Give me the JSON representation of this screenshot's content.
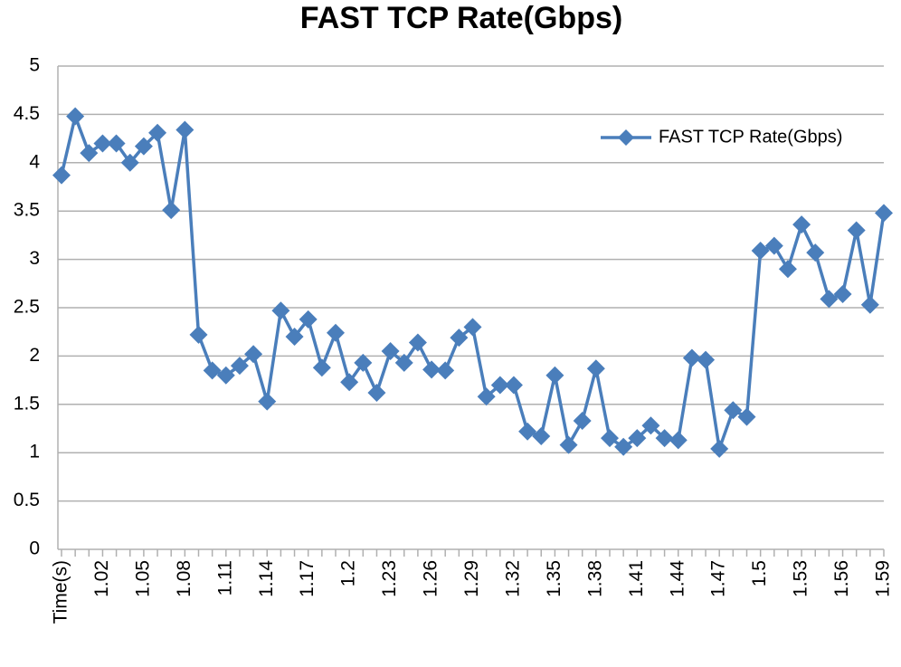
{
  "chart_data": {
    "type": "line",
    "title": "FAST TCP Rate(Gbps)",
    "categories": [
      "Time(s)",
      null,
      null,
      "1.02",
      null,
      null,
      "1.05",
      null,
      null,
      "1.08",
      null,
      null,
      "1.11",
      null,
      null,
      "1.14",
      null,
      null,
      "1.17",
      null,
      null,
      "1.2",
      null,
      null,
      "1.23",
      null,
      null,
      "1.26",
      null,
      null,
      "1.29",
      null,
      null,
      "1.32",
      null,
      null,
      "1.35",
      null,
      null,
      "1.38",
      null,
      null,
      "1.41",
      null,
      null,
      "1.44",
      null,
      null,
      "1.47",
      null,
      null,
      "1.5",
      null,
      null,
      "1.53",
      null,
      null,
      "1.56",
      null,
      null,
      "1.59"
    ],
    "series": [
      {
        "name": "FAST TCP Rate(Gbps)",
        "color": "#4a7ebb",
        "values": [
          3.87,
          4.48,
          4.1,
          4.2,
          4.2,
          4.0,
          4.17,
          4.31,
          3.51,
          4.34,
          2.22,
          1.85,
          1.8,
          1.9,
          2.02,
          1.53,
          2.47,
          2.2,
          2.38,
          1.88,
          2.24,
          1.73,
          1.93,
          1.62,
          2.05,
          1.93,
          2.14,
          1.86,
          1.85,
          2.19,
          2.3,
          1.58,
          1.7,
          1.7,
          1.22,
          1.17,
          1.8,
          1.08,
          1.33,
          1.87,
          1.15,
          1.06,
          1.15,
          1.28,
          1.15,
          1.13,
          1.98,
          1.96,
          1.04,
          1.44,
          1.37,
          3.09,
          3.14,
          2.9,
          3.36,
          3.07,
          2.59,
          2.64,
          3.3,
          2.53,
          3.48
        ]
      }
    ],
    "ylim": [
      0,
      5
    ],
    "yticks": [
      0,
      0.5,
      1,
      1.5,
      2,
      2.5,
      3,
      3.5,
      4,
      4.5,
      5
    ],
    "grid": true,
    "legend": "upper right"
  }
}
